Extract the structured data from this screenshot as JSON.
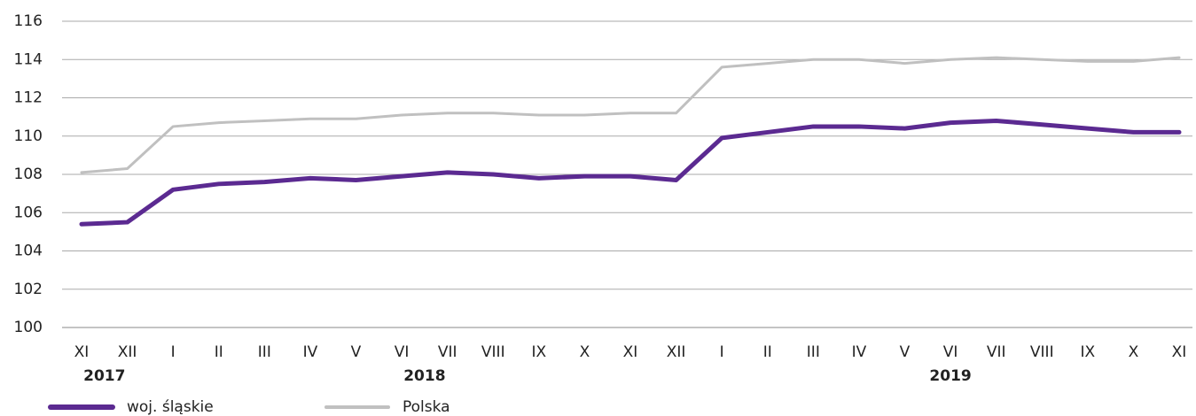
{
  "chart_data": {
    "type": "line",
    "categories": [
      "XI",
      "XII",
      "I",
      "II",
      "III",
      "IV",
      "V",
      "VI",
      "VII",
      "VIII",
      "IX",
      "X",
      "XI",
      "XII",
      "I",
      "II",
      "III",
      "IV",
      "V",
      "VI",
      "VII",
      "VIII",
      "IX",
      "X",
      "XI"
    ],
    "groups": [
      {
        "label": "2017",
        "start": 0,
        "end": 1
      },
      {
        "label": "2018",
        "start": 2,
        "end": 13
      },
      {
        "label": "2019",
        "start": 14,
        "end": 24
      }
    ],
    "series": [
      {
        "name": "woj. śląskie",
        "color": "#5b2a91",
        "width": 5,
        "values": [
          105.4,
          105.5,
          107.2,
          107.5,
          107.6,
          107.8,
          107.7,
          107.9,
          108.1,
          108.0,
          107.8,
          107.9,
          107.9,
          107.7,
          109.9,
          110.2,
          110.5,
          110.5,
          110.4,
          110.7,
          110.8,
          110.6,
          110.4,
          110.2,
          110.2
        ]
      },
      {
        "name": "Polska",
        "color": "#c0c0c0",
        "width": 3,
        "values": [
          108.1,
          108.3,
          110.5,
          110.7,
          110.8,
          110.9,
          110.9,
          111.1,
          111.2,
          111.2,
          111.1,
          111.1,
          111.2,
          111.2,
          113.6,
          113.8,
          114.0,
          114.0,
          113.8,
          114.0,
          114.1,
          114.0,
          113.9,
          113.9,
          114.1
        ]
      }
    ],
    "ylim": [
      100,
      116
    ],
    "yticks": [
      100,
      102,
      104,
      106,
      108,
      110,
      112,
      114,
      116
    ],
    "grid": true,
    "legend": "bottom-left"
  }
}
